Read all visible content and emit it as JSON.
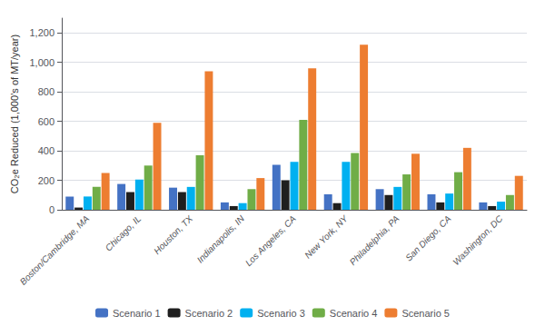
{
  "chart_data": {
    "type": "bar",
    "categories": [
      "Boston/Cambridge, MA",
      "Chicago, IL",
      "Houston, TX",
      "Indianapolis, IN",
      "Los Angeles, CA",
      "New York, NY",
      "Philadelphia, PA",
      "San Diego, CA",
      "Washington, DC"
    ],
    "series": [
      {
        "name": "Scenario 1",
        "color": "#4472C4",
        "values": [
          90,
          175,
          150,
          50,
          305,
          105,
          140,
          105,
          50
        ]
      },
      {
        "name": "Scenario 2",
        "color": "#1F1F1F",
        "values": [
          15,
          120,
          120,
          25,
          200,
          45,
          100,
          50,
          25
        ]
      },
      {
        "name": "Scenario 3",
        "color": "#00B0F0",
        "values": [
          90,
          205,
          155,
          45,
          325,
          325,
          155,
          110,
          55
        ]
      },
      {
        "name": "Scenario 4",
        "color": "#70AD47",
        "values": [
          155,
          300,
          370,
          140,
          610,
          385,
          240,
          255,
          100
        ]
      },
      {
        "name": "Scenario 5",
        "color": "#ED7D31",
        "values": [
          250,
          590,
          940,
          215,
          960,
          1120,
          380,
          420,
          230
        ]
      }
    ],
    "ylabel": "CO₂e Reduced (1,000’s of MT/year)",
    "ylim": [
      0,
      1300
    ],
    "yticks": [
      0,
      200,
      400,
      600,
      800,
      {
        "value": 1000,
        "label": "1,000"
      },
      {
        "value": 1200,
        "label": "1,200"
      }
    ],
    "grid": true,
    "legend": "bottom"
  }
}
